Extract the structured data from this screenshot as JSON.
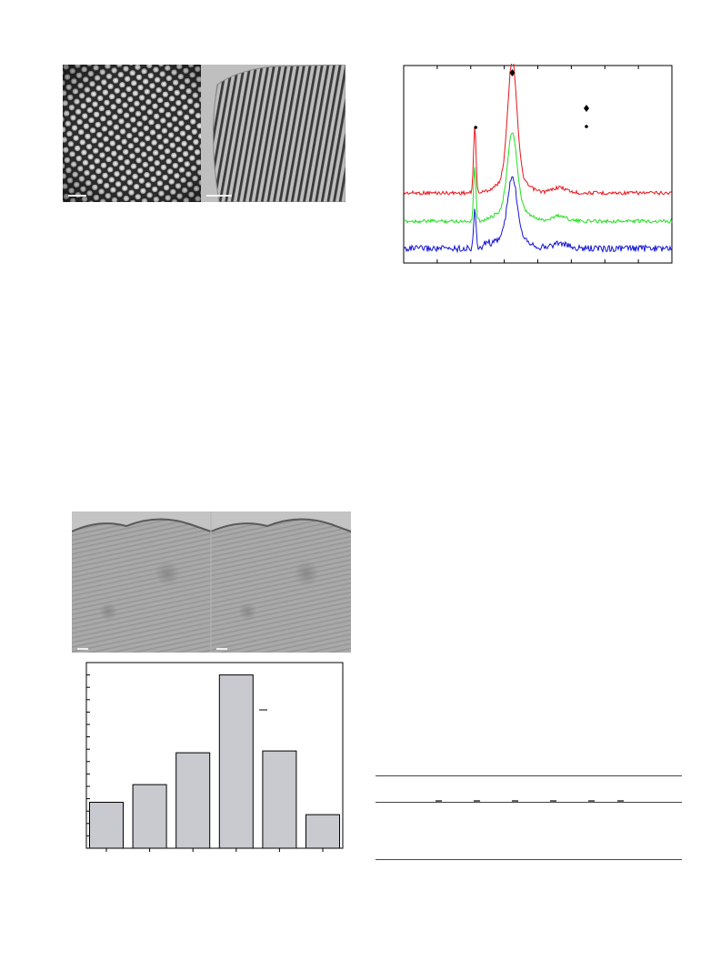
{
  "figures": {
    "tem_top": {
      "left_pattern": "hexagonal-pores",
      "right_pattern": "parallel-channels"
    },
    "xrd": {
      "peak_markers": [
        "diamond",
        "circle"
      ],
      "legend_markers": [
        "diamond",
        "circle"
      ],
      "series_colors": [
        "#e8141c",
        "#22dd22",
        "#1414d8"
      ]
    },
    "tem_bottom": {
      "pattern": "curved-lattice-fringes"
    },
    "histogram": {
      "bar_color": "#c9cacf"
    },
    "table": {
      "rules": 3
    }
  },
  "chart_data": [
    {
      "type": "line",
      "title": "",
      "xlabel": "",
      "ylabel": "",
      "grid": false,
      "series": [
        {
          "color": "#e8141c",
          "peaks": [
            {
              "x": 0.27,
              "height": 0.9
            },
            {
              "x": 0.4,
              "height": 1.0
            }
          ]
        },
        {
          "color": "#22dd22",
          "peaks": [
            {
              "x": 0.27,
              "height": 0.45
            },
            {
              "x": 0.4,
              "height": 0.55
            }
          ]
        },
        {
          "color": "#1414d8",
          "peaks": [
            {
              "x": 0.27,
              "height": 0.25
            },
            {
              "x": 0.4,
              "height": 0.5
            }
          ]
        }
      ]
    },
    {
      "type": "bar",
      "title": "",
      "xlabel": "",
      "ylabel": "",
      "grid": false,
      "categories": [
        "",
        "",
        "",
        "",
        "",
        ""
      ],
      "values": [
        0.26,
        0.36,
        0.54,
        0.98,
        0.55,
        0.19
      ],
      "ylim": [
        0,
        1.05
      ]
    }
  ]
}
